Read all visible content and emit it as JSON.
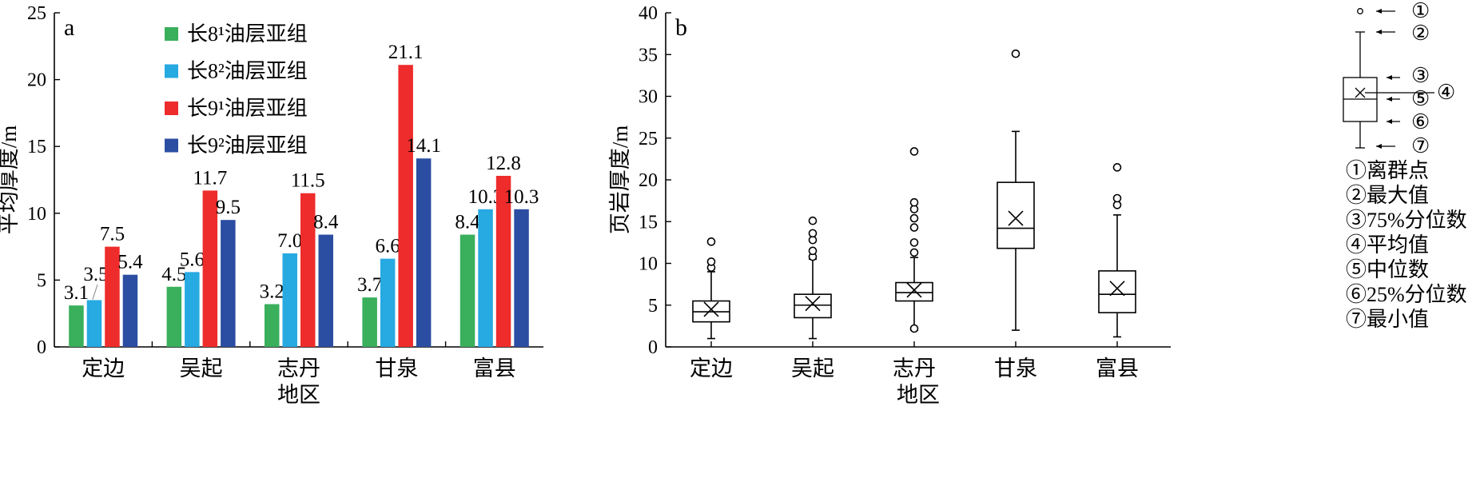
{
  "chart_data": [
    {
      "type": "bar",
      "panel_label": "a",
      "categories": [
        "定边",
        "吴起",
        "志丹",
        "甘泉",
        "富县"
      ],
      "xlabel": "地区",
      "ylabel": "平均厚度/m",
      "ylim": [
        0,
        25
      ],
      "yticks": [
        0,
        5,
        10,
        15,
        20,
        25
      ],
      "grid": false,
      "legend_position": "top-left",
      "series": [
        {
          "name": "长8¹油层亚组",
          "color": "#3aaf5c",
          "values": [
            3.1,
            4.5,
            3.2,
            3.7,
            8.4
          ],
          "labels": [
            "3.1",
            "4.5",
            "3.2",
            "3.7",
            "8.4"
          ]
        },
        {
          "name": "长8²油层亚组",
          "color": "#27a9e1",
          "values": [
            3.5,
            5.6,
            7.0,
            6.6,
            10.3
          ],
          "labels": [
            "3.5",
            "5.6",
            "7.0",
            "6.6",
            "10.3"
          ]
        },
        {
          "name": "长9¹油层亚组",
          "color": "#ee2c2c",
          "values": [
            7.5,
            11.7,
            11.5,
            21.1,
            12.8
          ],
          "labels": [
            "7.5",
            "11.7",
            "11.5",
            "21.1",
            "12.8"
          ]
        },
        {
          "name": "长9²油层亚组",
          "color": "#2b4ea2",
          "values": [
            5.4,
            9.5,
            8.4,
            14.1,
            10.3
          ],
          "labels": [
            "5.4",
            "9.5",
            "8.4",
            "14.1",
            "10.3"
          ]
        }
      ]
    },
    {
      "type": "box",
      "panel_label": "b",
      "categories": [
        "定边",
        "吴起",
        "志丹",
        "甘泉",
        "富县"
      ],
      "xlabel": "地区",
      "ylabel": "页岩厚度/m",
      "ylim": [
        0,
        40
      ],
      "yticks": [
        0,
        5,
        10,
        15,
        20,
        25,
        30,
        35,
        40
      ],
      "grid": false,
      "boxes": [
        {
          "min": 1.0,
          "q1": 3.0,
          "median": 4.2,
          "q3": 5.5,
          "max": 9.0,
          "mean": 4.5,
          "outliers": [
            9.5,
            10.2,
            12.6
          ]
        },
        {
          "min": 1.0,
          "q1": 3.5,
          "median": 5.0,
          "q3": 6.3,
          "max": 10.5,
          "mean": 5.2,
          "outliers": [
            10.8,
            11.5,
            12.8,
            13.6,
            15.1
          ]
        },
        {
          "min": 2.0,
          "q1": 5.5,
          "median": 6.5,
          "q3": 7.7,
          "max": 10.7,
          "mean": 6.8,
          "outliers": [
            2.2,
            11.3,
            12.5,
            14.3,
            15.4,
            16.5,
            17.3,
            23.4
          ]
        },
        {
          "min": 2.0,
          "q1": 11.8,
          "median": 14.2,
          "q3": 19.7,
          "max": 25.8,
          "mean": 15.4,
          "outliers": [
            35.1
          ]
        },
        {
          "min": 1.2,
          "q1": 4.1,
          "median": 6.3,
          "q3": 9.1,
          "max": 15.8,
          "mean": 7.0,
          "outliers": [
            17.0,
            17.8,
            21.5
          ]
        }
      ],
      "key": {
        "markers": [
          "①",
          "②",
          "③",
          "④",
          "⑤",
          "⑥",
          "⑦"
        ],
        "items": [
          "①离群点",
          "②最大值",
          "③75%分位数",
          "④平均值",
          "⑤中位数",
          "⑥25%分位数",
          "⑦最小值"
        ]
      }
    }
  ]
}
